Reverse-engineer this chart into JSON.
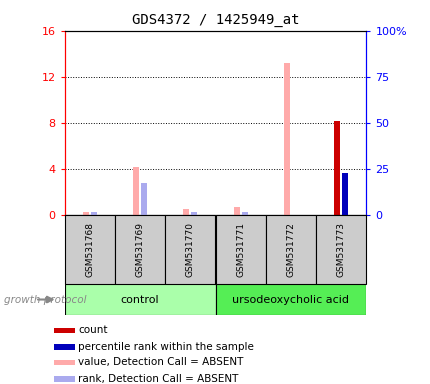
{
  "title": "GDS4372 / 1425949_at",
  "samples": [
    "GSM531768",
    "GSM531769",
    "GSM531770",
    "GSM531771",
    "GSM531772",
    "GSM531773"
  ],
  "ylim_left": [
    0,
    16
  ],
  "ylim_right": [
    0,
    100
  ],
  "yticks_left": [
    0,
    4,
    8,
    12,
    16
  ],
  "yticks_right": [
    0,
    25,
    50,
    75,
    100
  ],
  "ytick_labels_left": [
    "0",
    "4",
    "8",
    "12",
    "16"
  ],
  "ytick_labels_right": [
    "0",
    "25",
    "50",
    "75",
    "100%"
  ],
  "value_absent": [
    0.3,
    4.2,
    0.5,
    0.7,
    13.2,
    null
  ],
  "rank_absent_right": [
    1.5,
    17.5,
    1.5,
    1.5,
    null,
    null
  ],
  "count": [
    null,
    null,
    null,
    null,
    null,
    8.2
  ],
  "percentile_right": [
    null,
    null,
    null,
    null,
    null,
    23.0
  ],
  "control_color": "#aaffaa",
  "treatment_color": "#55ee55",
  "sample_bg_color": "#cccccc",
  "color_count": "#cc0000",
  "color_percentile": "#0000bb",
  "color_value_absent": "#ffaaaa",
  "color_rank_absent": "#aaaaee",
  "legend_items": [
    {
      "label": "count",
      "color": "#cc0000"
    },
    {
      "label": "percentile rank within the sample",
      "color": "#0000bb"
    },
    {
      "label": "value, Detection Call = ABSENT",
      "color": "#ffaaaa"
    },
    {
      "label": "rank, Detection Call = ABSENT",
      "color": "#aaaaee"
    }
  ]
}
